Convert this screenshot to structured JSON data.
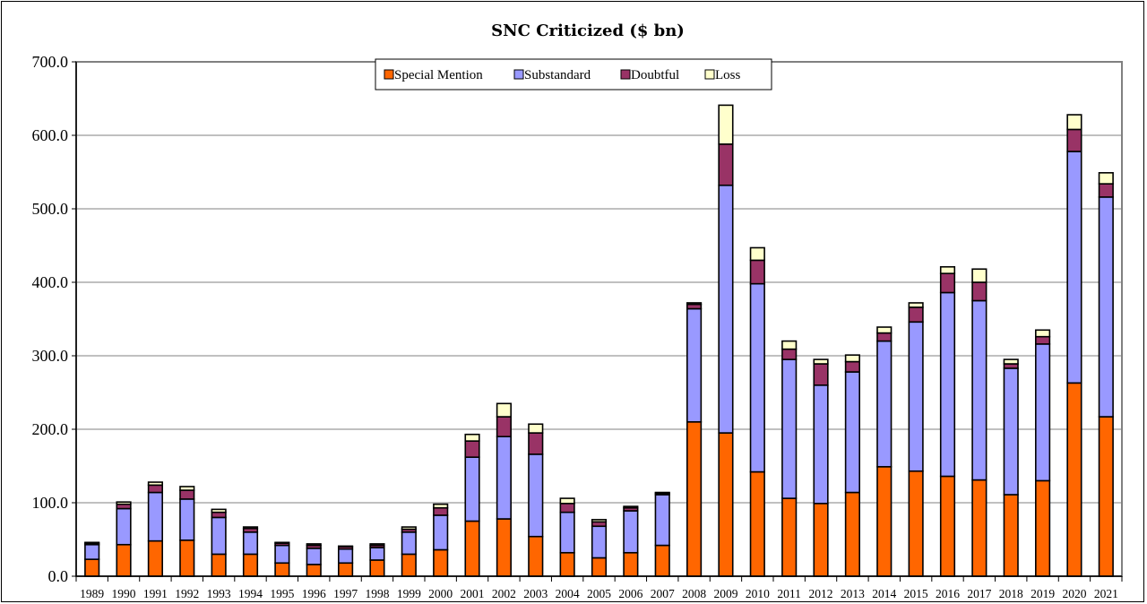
{
  "chart_data": {
    "type": "bar",
    "stacked": true,
    "title": "SNC Criticized  ($ bn)",
    "xlabel": "",
    "ylabel": "",
    "ylim": [
      0,
      700
    ],
    "yticks": [
      "0.0",
      "100.0",
      "200.0",
      "300.0",
      "400.0",
      "500.0",
      "600.0",
      "700.0"
    ],
    "grid": true,
    "legend_position": "top-center",
    "categories": [
      "1989",
      "1990",
      "1991",
      "1992",
      "1993",
      "1994",
      "1995",
      "1996",
      "1997",
      "1998",
      "1999",
      "2000",
      "2001",
      "2002",
      "2003",
      "2004",
      "2005",
      "2006",
      "2007",
      "2008",
      "2009",
      "2010",
      "2011",
      "2012",
      "2013",
      "2014",
      "2015",
      "2016",
      "2017",
      "2018",
      "2019",
      "2020",
      "2021"
    ],
    "series": [
      {
        "name": "Special Mention",
        "color": "#ff6600",
        "values": [
          23,
          43,
          48,
          49,
          30,
          30,
          18,
          16,
          18,
          22,
          30,
          36,
          75,
          78,
          54,
          32,
          25,
          32,
          42,
          210,
          195,
          142,
          106,
          99,
          114,
          149,
          143,
          136,
          131,
          111,
          130,
          263,
          217
        ]
      },
      {
        "name": "Substandard",
        "color": "#9999ff",
        "values": [
          20,
          49,
          66,
          56,
          50,
          30,
          24,
          22,
          19,
          17,
          30,
          47,
          87,
          112,
          112,
          55,
          43,
          57,
          69,
          154,
          337,
          256,
          189,
          161,
          164,
          171,
          203,
          250,
          244,
          172,
          186,
          315,
          299
        ]
      },
      {
        "name": "Doubtful",
        "color": "#993366",
        "values": [
          2,
          6,
          10,
          12,
          7,
          5,
          3,
          4,
          3,
          3,
          4,
          10,
          22,
          27,
          29,
          12,
          6,
          4,
          2,
          6,
          56,
          32,
          14,
          29,
          14,
          11,
          20,
          26,
          25,
          6,
          10,
          30,
          18
        ]
      },
      {
        "name": "Loss",
        "color": "#ffffcc",
        "values": [
          1,
          3,
          4,
          5,
          4,
          2,
          1,
          2,
          1,
          2,
          3,
          5,
          9,
          18,
          12,
          7,
          3,
          2,
          1,
          2,
          53,
          17,
          11,
          6,
          9,
          8,
          6,
          9,
          18,
          6,
          9,
          20,
          15
        ]
      }
    ]
  }
}
